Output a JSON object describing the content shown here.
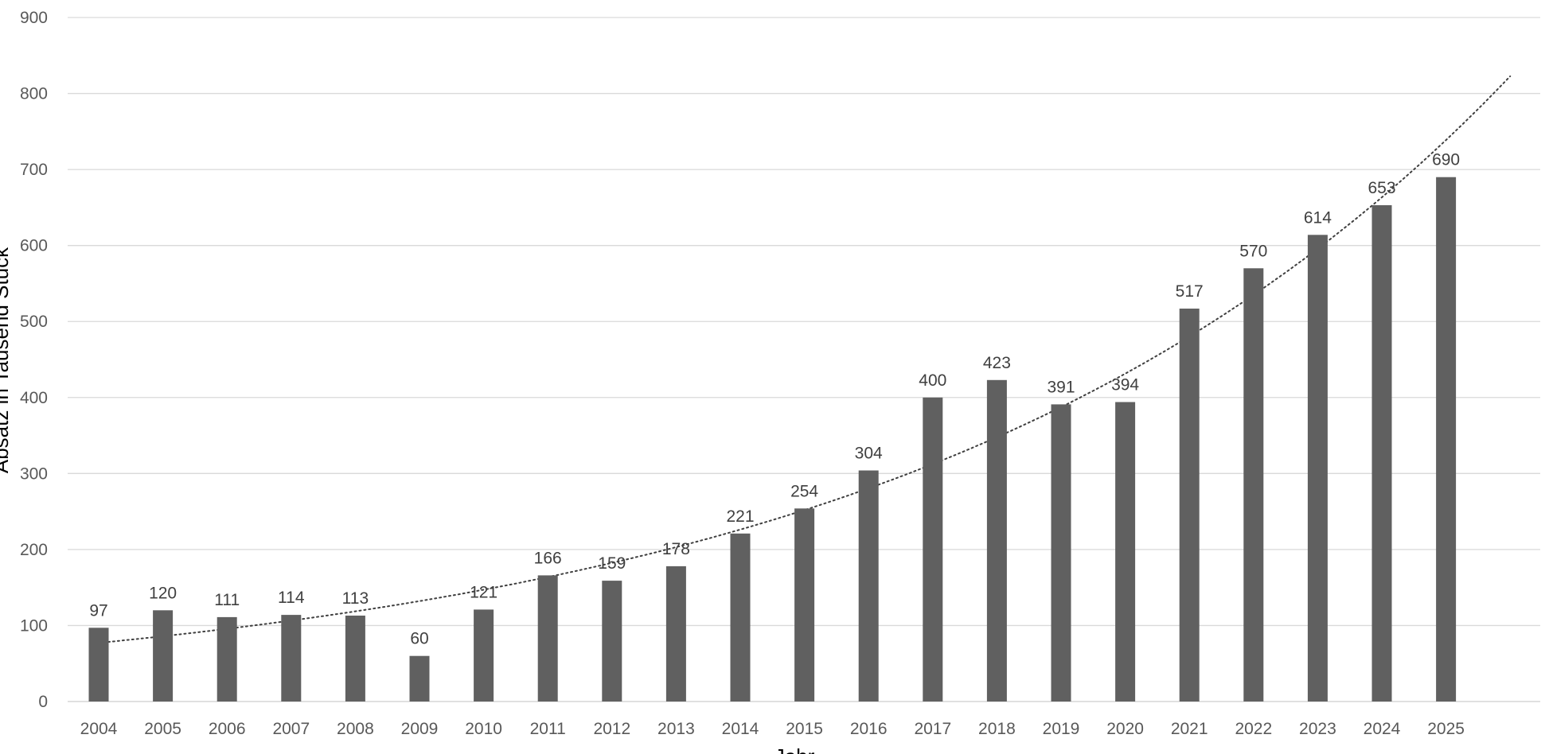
{
  "chart_data": {
    "type": "bar",
    "title": "",
    "xlabel": "Jahr",
    "ylabel": "Absatz in Tausend Stück",
    "ylim": [
      0,
      900
    ],
    "yticks": [
      0,
      100,
      200,
      300,
      400,
      500,
      600,
      700,
      800,
      900
    ],
    "grid": true,
    "legend": "none",
    "categories": [
      "2004",
      "2005",
      "2006",
      "2007",
      "2008",
      "2009",
      "2010",
      "2011",
      "2012",
      "2013",
      "2014",
      "2015",
      "2016",
      "2017",
      "2018",
      "2019",
      "2020",
      "2021",
      "2022",
      "2023",
      "2024",
      "2025"
    ],
    "series": [
      {
        "values": [
          97,
          120,
          111,
          114,
          113,
          60,
          121,
          166,
          159,
          178,
          221,
          254,
          304,
          400,
          423,
          391,
          394,
          517,
          570,
          614,
          653,
          690
        ],
        "color": "#606060"
      }
    ],
    "trendline": {
      "type": "exponential",
      "style": "dotted",
      "color": "#404040"
    },
    "colors": {
      "bar": "#606060",
      "grid": "#d9d9d9",
      "tick_text": "#595959",
      "label_text": "#404040"
    }
  }
}
